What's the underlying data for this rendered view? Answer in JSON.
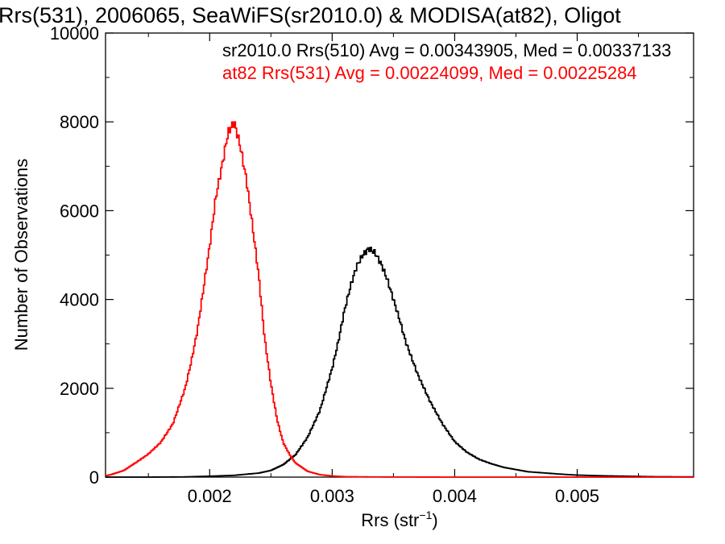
{
  "chart_data": {
    "type": "line",
    "title": "Rrs(531), 2006065, SeaWiFS(sr2010.0) & MODISA(at82), Oligot",
    "xlabel": "Rrs (str",
    "xlabel_sup": "−1",
    "xlabel_close": ")",
    "ylabel": "Number of Observations",
    "xlim": [
      0.00115,
      0.00595
    ],
    "ylim": [
      0,
      10000
    ],
    "x_ticks": [
      0.002,
      0.003,
      0.004,
      0.005
    ],
    "x_tick_labels": [
      "0.002",
      "0.003",
      "0.004",
      "0.005"
    ],
    "y_ticks": [
      0,
      2000,
      4000,
      6000,
      8000,
      10000
    ],
    "y_tick_labels": [
      "0",
      "2000",
      "4000",
      "6000",
      "8000",
      "10000"
    ],
    "grid": false,
    "legend_position": "top-right",
    "series": [
      {
        "name": "sr2010.0 Rrs(510) Avg = 0.00343905, Med = 0.00337133",
        "color": "#000000",
        "x": [
          0.00115,
          0.0015,
          0.0018,
          0.002,
          0.0022,
          0.0024,
          0.0025,
          0.0026,
          0.0027,
          0.0028,
          0.0029,
          0.003,
          0.00305,
          0.0031,
          0.00315,
          0.0032,
          0.00325,
          0.0033,
          0.00335,
          0.0034,
          0.00345,
          0.0035,
          0.00355,
          0.0036,
          0.0037,
          0.0038,
          0.0039,
          0.004,
          0.0041,
          0.0042,
          0.0043,
          0.0044,
          0.0045,
          0.0046,
          0.0047,
          0.0048,
          0.0049,
          0.005,
          0.0052,
          0.0054,
          0.0056,
          0.00595
        ],
        "values": [
          0,
          0,
          5,
          20,
          40,
          90,
          150,
          280,
          500,
          900,
          1500,
          2450,
          3050,
          3750,
          4300,
          4750,
          5000,
          5150,
          5050,
          4800,
          4450,
          4000,
          3550,
          3050,
          2300,
          1700,
          1200,
          800,
          560,
          400,
          300,
          220,
          170,
          120,
          100,
          80,
          60,
          45,
          30,
          20,
          10,
          5
        ]
      },
      {
        "name": "at82 Rrs(531) Avg = 0.00224099, Med = 0.00225284",
        "color": "#ff0000",
        "x": [
          0.00115,
          0.0012,
          0.0013,
          0.0014,
          0.0015,
          0.0016,
          0.0017,
          0.0018,
          0.00185,
          0.0019,
          0.00195,
          0.002,
          0.00205,
          0.0021,
          0.00215,
          0.0022,
          0.00225,
          0.0023,
          0.00235,
          0.0024,
          0.00245,
          0.0025,
          0.00255,
          0.0026,
          0.00265,
          0.0027,
          0.0028,
          0.0029,
          0.003,
          0.0031,
          0.0033,
          0.0036,
          0.004,
          0.005,
          0.00595
        ],
        "values": [
          30,
          60,
          150,
          330,
          520,
          780,
          1200,
          2000,
          2600,
          3300,
          4250,
          5200,
          6300,
          7000,
          7750,
          8000,
          7450,
          6700,
          5650,
          4550,
          3100,
          2100,
          1300,
          780,
          520,
          320,
          130,
          55,
          25,
          10,
          5,
          2,
          0,
          0,
          0
        ]
      }
    ]
  }
}
